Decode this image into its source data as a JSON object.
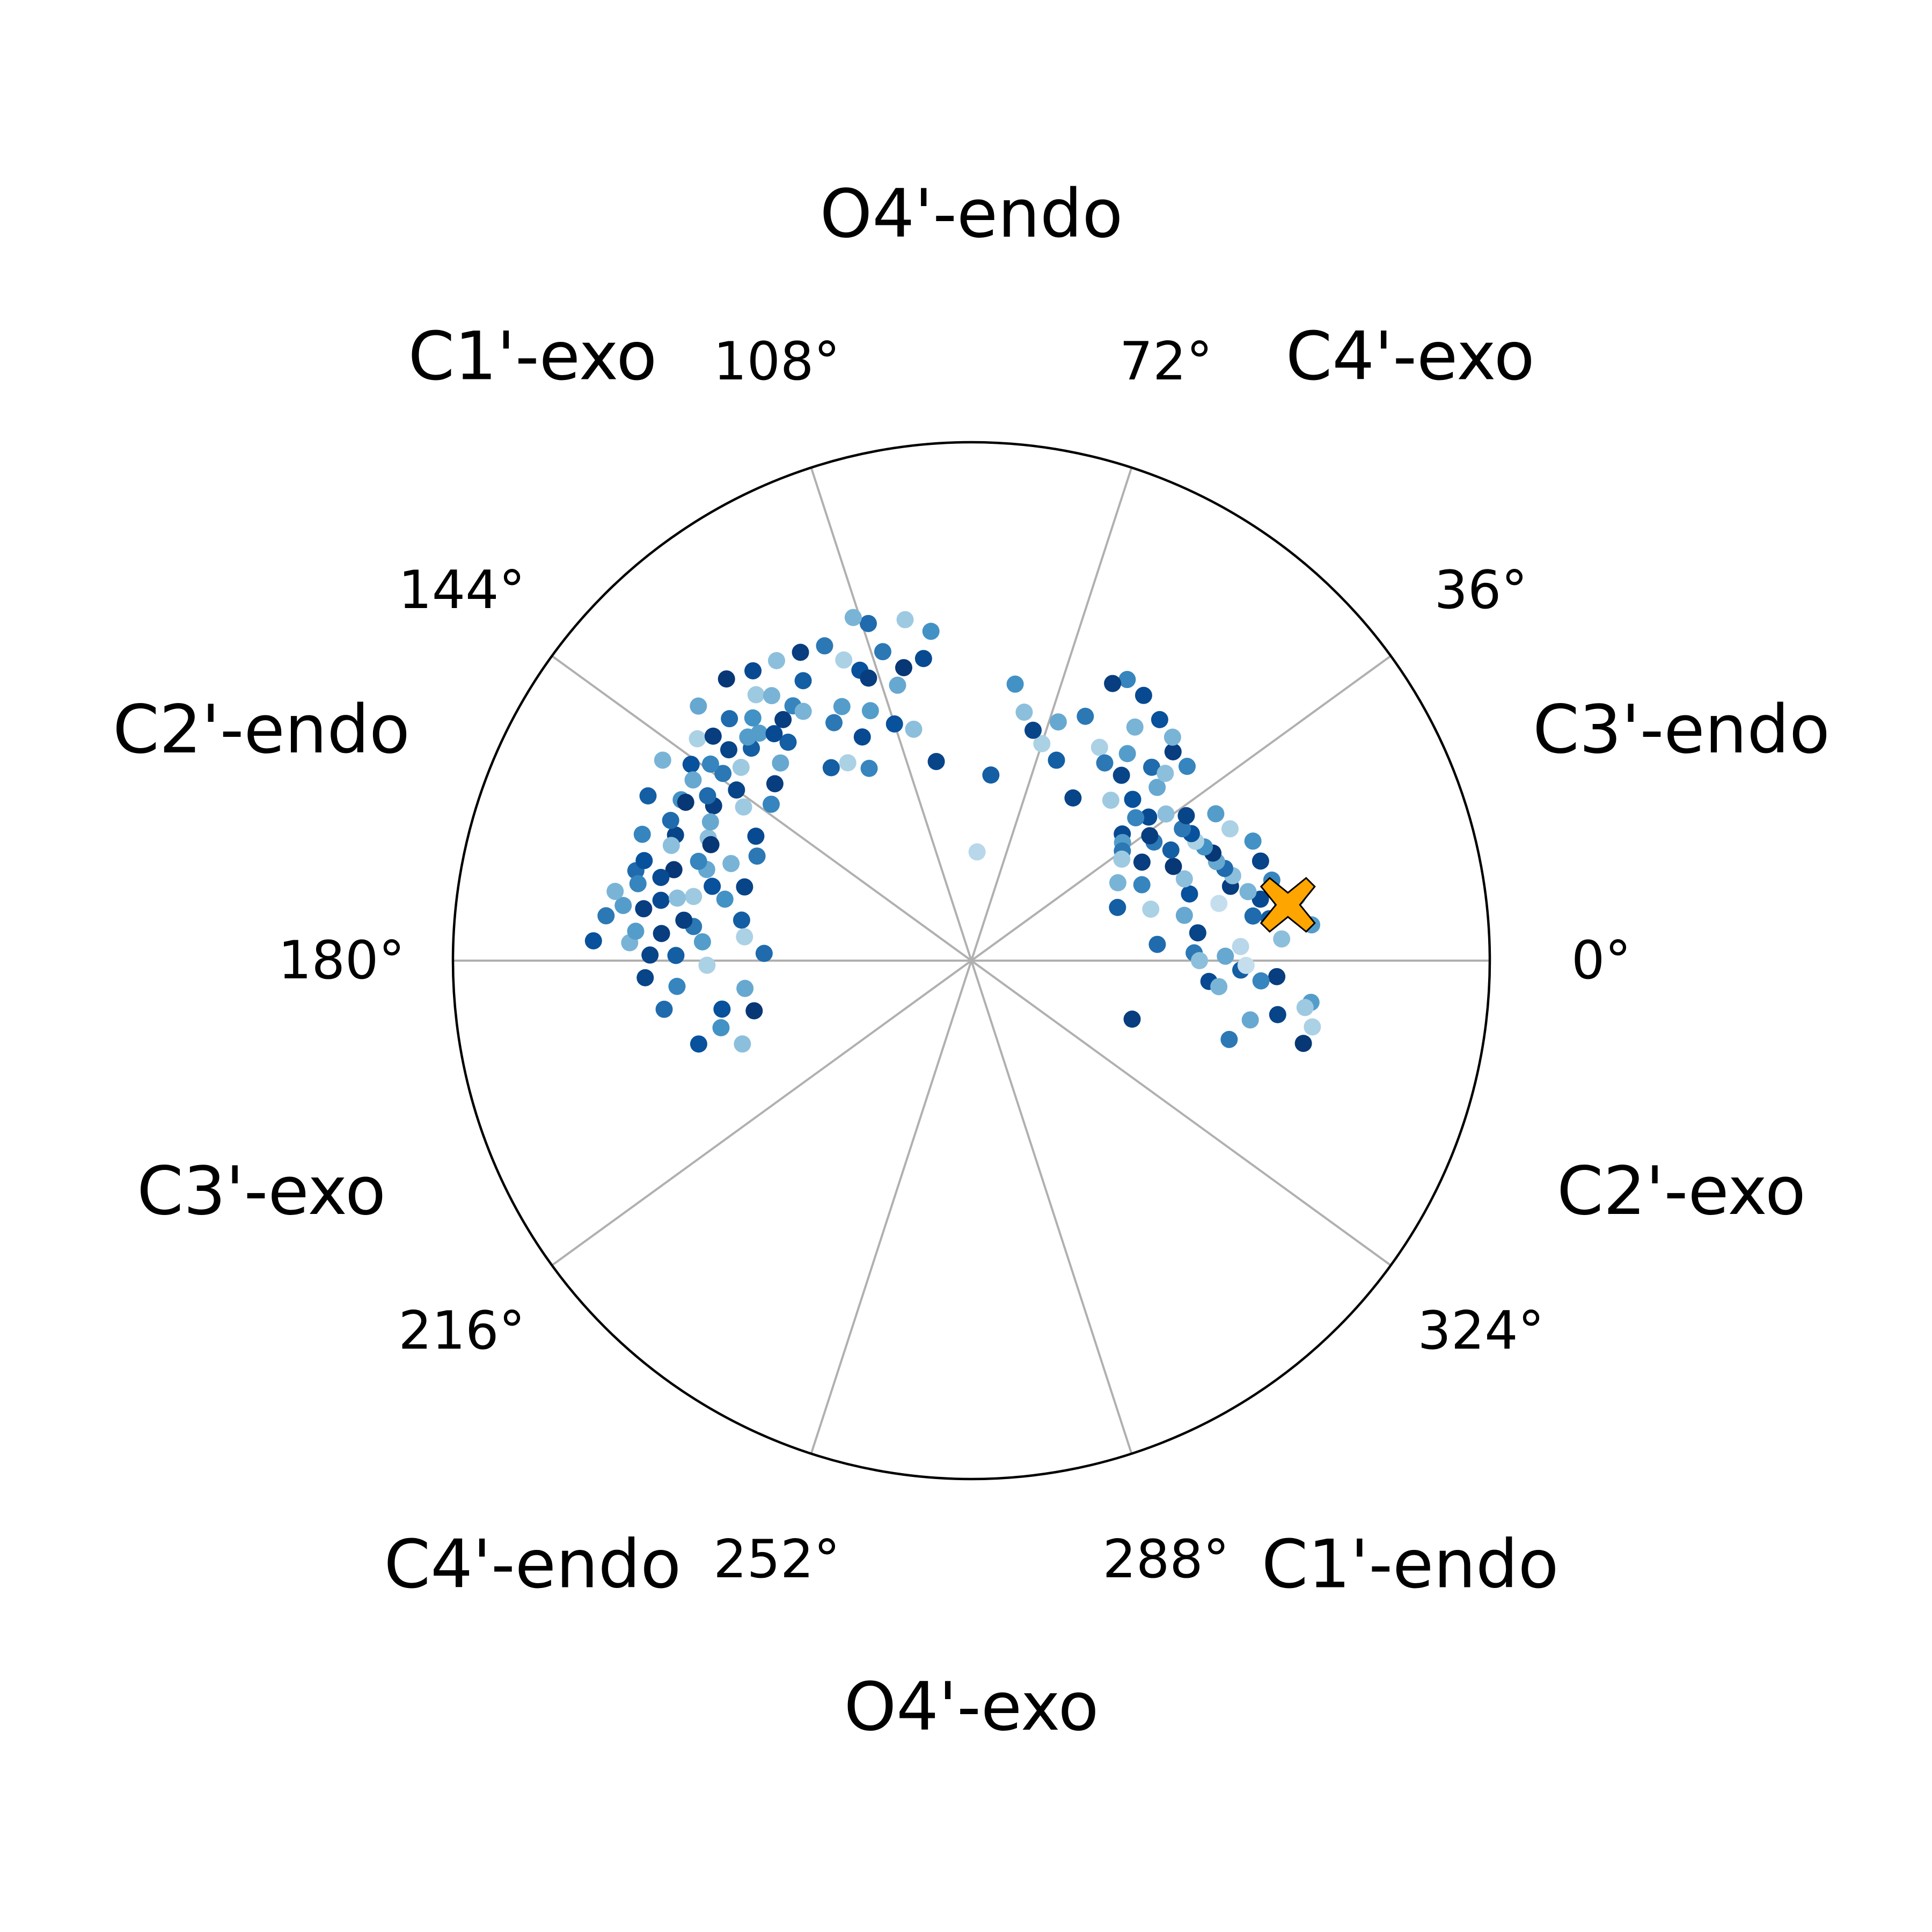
{
  "chart_data": {
    "type": "scatter",
    "coordinate_system": "polar",
    "theta_unit": "degrees",
    "theta_direction": "counterclockwise",
    "theta_zero": "east",
    "r_range": [
      0,
      1
    ],
    "radial_tick_labels": "none",
    "grid": "angular spokes every 36 degrees",
    "legend": "none",
    "colormap": "Blues",
    "theta_tick_labels": [
      "0°",
      "36°",
      "72°",
      "108°",
      "144°",
      "180°",
      "216°",
      "252°",
      "288°",
      "324°"
    ],
    "pucker_labels": [
      {
        "theta": 18,
        "text": "C3'-endo"
      },
      {
        "theta": 54,
        "text": "C4'-exo"
      },
      {
        "theta": 90,
        "text": "O4'-endo"
      },
      {
        "theta": 126,
        "text": "C1'-exo"
      },
      {
        "theta": 162,
        "text": "C2'-endo"
      },
      {
        "theta": 198,
        "text": "C3'-exo"
      },
      {
        "theta": 234,
        "text": "C4'-endo"
      },
      {
        "theta": 270,
        "text": "O4'-exo"
      },
      {
        "theta": 306,
        "text": "C1'-endo"
      },
      {
        "theta": 342,
        "text": "C2'-exo"
      }
    ],
    "highlight": {
      "theta": 10,
      "r": 0.62,
      "marker": "X",
      "color": "#FFA500",
      "edgecolor": "#000000"
    },
    "points": [
      [
        10,
        0.61,
        0.55
      ],
      [
        12,
        0.57,
        0.8
      ],
      [
        14,
        0.55,
        0.35
      ],
      [
        8,
        0.58,
        0.7
      ],
      [
        6,
        0.66,
        0.45
      ],
      [
        16,
        0.52,
        0.9
      ],
      [
        18,
        0.53,
        0.3
      ],
      [
        20,
        0.52,
        0.65
      ],
      [
        22,
        0.51,
        0.4
      ],
      [
        24,
        0.51,
        0.95
      ],
      [
        26,
        0.5,
        0.5
      ],
      [
        28,
        0.49,
        0.2
      ],
      [
        30,
        0.49,
        0.75
      ],
      [
        32,
        0.48,
        0.6
      ],
      [
        34,
        0.5,
        0.85
      ],
      [
        4,
        0.6,
        0.3
      ],
      [
        3,
        0.52,
        0.15
      ],
      [
        2,
        0.43,
        0.6
      ],
      [
        1,
        0.49,
        0.4
      ],
      [
        -2,
        0.52,
        0.7
      ],
      [
        -3,
        0.59,
        0.9
      ],
      [
        -4,
        0.56,
        0.55
      ],
      [
        -5,
        0.46,
        0.8
      ],
      [
        -6,
        0.48,
        0.35
      ],
      [
        -7,
        0.66,
        0.45
      ],
      [
        -8,
        0.65,
        0.25
      ],
      [
        -10,
        0.6,
        0.85
      ],
      [
        -11,
        0.67,
        0.2
      ],
      [
        -12,
        0.55,
        0.4
      ],
      [
        -14,
        0.66,
        0.95
      ],
      [
        -17,
        0.52,
        0.6
      ],
      [
        -20,
        0.33,
        0.9
      ],
      [
        9,
        0.55,
        0.65
      ],
      [
        11,
        0.64,
        0.35
      ],
      [
        13,
        0.49,
        0.1
      ],
      [
        15,
        0.6,
        0.55
      ],
      [
        17,
        0.44,
        0.75
      ],
      [
        19,
        0.59,
        0.85
      ],
      [
        21,
        0.44,
        0.3
      ],
      [
        23,
        0.59,
        0.5
      ],
      [
        25,
        0.43,
        0.95
      ],
      [
        27,
        0.56,
        0.2
      ],
      [
        29,
        0.44,
        0.7
      ],
      [
        31,
        0.55,
        0.45
      ],
      [
        33,
        0.42,
        0.6
      ],
      [
        35,
        0.42,
        0.9
      ],
      [
        37,
        0.47,
        0.3
      ],
      [
        39,
        0.44,
        0.8
      ],
      [
        41,
        0.42,
        0.55
      ],
      [
        43,
        0.49,
        0.4
      ],
      [
        45,
        0.44,
        0.75
      ],
      [
        47,
        0.51,
        0.65
      ],
      [
        49,
        0.41,
        0.25
      ],
      [
        51,
        0.46,
        0.85
      ],
      [
        53,
        0.5,
        0.45
      ],
      [
        55,
        0.55,
        0.35
      ],
      [
        57,
        0.61,
        0.8
      ],
      [
        59,
        0.48,
        0.2
      ],
      [
        61,
        0.62,
        0.55
      ],
      [
        63,
        0.6,
        0.9
      ],
      [
        65,
        0.52,
        0.6
      ],
      [
        67,
        0.42,
        0.7
      ],
      [
        70,
        0.49,
        0.4
      ],
      [
        72,
        0.44,
        0.2
      ],
      [
        75,
        0.46,
        0.85
      ],
      [
        78,
        0.49,
        0.3
      ],
      [
        81,
        0.54,
        0.5
      ],
      [
        84,
        0.36,
        0.7
      ],
      [
        87,
        0.21,
        0.15
      ],
      [
        40,
        0.38,
        0.8
      ],
      [
        38,
        0.37,
        0.45
      ],
      [
        36,
        0.36,
        0.6
      ],
      [
        34,
        0.35,
        0.25
      ],
      [
        30,
        0.38,
        0.9
      ],
      [
        28,
        0.32,
        0.35
      ],
      [
        24,
        0.36,
        0.55
      ],
      [
        20,
        0.3,
        0.7
      ],
      [
        16,
        0.36,
        0.2
      ],
      [
        12,
        0.42,
        0.4
      ],
      [
        7,
        0.44,
        0.85
      ],
      [
        5,
        0.36,
        0.65
      ],
      [
        0,
        0.44,
        0.3
      ],
      [
        -1,
        0.53,
        0.1
      ],
      [
        44,
        0.52,
        0.3
      ],
      [
        46,
        0.56,
        0.9
      ],
      [
        42,
        0.56,
        0.55
      ],
      [
        48,
        0.58,
        0.35
      ],
      [
        52,
        0.59,
        0.75
      ],
      [
        56,
        0.46,
        0.6
      ],
      [
        58,
        0.37,
        0.85
      ],
      [
        97,
        0.64,
        0.5
      ],
      [
        99,
        0.59,
        0.8
      ],
      [
        101,
        0.67,
        0.25
      ],
      [
        103,
        0.58,
        0.95
      ],
      [
        105,
        0.55,
        0.4
      ],
      [
        107,
        0.68,
        0.65
      ],
      [
        109,
        0.7,
        0.35
      ],
      [
        111,
        0.6,
        0.75
      ],
      [
        113,
        0.63,
        0.2
      ],
      [
        115,
        0.67,
        0.6
      ],
      [
        117,
        0.55,
        0.45
      ],
      [
        119,
        0.68,
        0.9
      ],
      [
        121,
        0.63,
        0.7
      ],
      [
        123,
        0.69,
        0.3
      ],
      [
        125,
        0.6,
        0.55
      ],
      [
        127,
        0.7,
        0.8
      ],
      [
        129,
        0.66,
        0.25
      ],
      [
        131,
        0.72,
        0.95
      ],
      [
        133,
        0.6,
        0.45
      ],
      [
        135,
        0.66,
        0.65
      ],
      [
        137,
        0.72,
        0.4
      ],
      [
        139,
        0.62,
        0.85
      ],
      [
        141,
        0.68,
        0.2
      ],
      [
        143,
        0.6,
        0.6
      ],
      [
        145,
        0.66,
        0.75
      ],
      [
        147,
        0.71,
        0.35
      ],
      [
        149,
        0.58,
        0.9
      ],
      [
        151,
        0.64,
        0.5
      ],
      [
        153,
        0.7,
        0.7
      ],
      [
        155,
        0.56,
        0.3
      ],
      [
        157,
        0.62,
        0.85
      ],
      [
        159,
        0.68,
        0.55
      ],
      [
        161,
        0.54,
        0.4
      ],
      [
        163,
        0.6,
        0.95
      ],
      [
        165,
        0.67,
        0.65
      ],
      [
        167,
        0.55,
        0.25
      ],
      [
        169,
        0.61,
        0.8
      ],
      [
        171,
        0.68,
        0.45
      ],
      [
        173,
        0.54,
        0.6
      ],
      [
        175,
        0.6,
        0.9
      ],
      [
        177,
        0.66,
        0.35
      ],
      [
        179,
        0.57,
        0.7
      ],
      [
        181,
        0.51,
        0.2
      ],
      [
        183,
        0.63,
        0.85
      ],
      [
        185,
        0.57,
        0.55
      ],
      [
        187,
        0.44,
        0.4
      ],
      [
        189,
        0.6,
        0.65
      ],
      [
        191,
        0.49,
        0.75
      ],
      [
        193,
        0.43,
        0.95
      ],
      [
        195,
        0.5,
        0.5
      ],
      [
        197,
        0.55,
        0.75
      ],
      [
        200,
        0.47,
        0.3
      ],
      [
        130,
        0.55,
        0.7
      ],
      [
        134,
        0.53,
        0.4
      ],
      [
        138,
        0.51,
        0.9
      ],
      [
        142,
        0.49,
        0.55
      ],
      [
        146,
        0.53,
        0.25
      ],
      [
        150,
        0.48,
        0.8
      ],
      [
        154,
        0.46,
        0.6
      ],
      [
        158,
        0.5,
        0.35
      ],
      [
        162,
        0.46,
        0.85
      ],
      [
        166,
        0.49,
        0.5
      ],
      [
        170,
        0.45,
        0.7
      ],
      [
        174,
        0.44,
        0.2
      ],
      [
        178,
        0.4,
        0.65
      ],
      [
        176,
        0.52,
        0.45
      ],
      [
        172,
        0.56,
        0.9
      ],
      [
        168,
        0.58,
        0.3
      ],
      [
        164,
        0.52,
        0.75
      ],
      [
        160,
        0.56,
        0.55
      ],
      [
        156,
        0.55,
        0.95
      ],
      [
        152,
        0.57,
        0.4
      ],
      [
        148,
        0.6,
        0.65
      ],
      [
        144,
        0.56,
        0.85
      ],
      [
        140,
        0.58,
        0.25
      ],
      [
        136,
        0.59,
        0.7
      ],
      [
        132,
        0.63,
        0.5
      ],
      [
        128,
        0.59,
        0.9
      ],
      [
        124,
        0.58,
        0.35
      ],
      [
        120,
        0.53,
        0.6
      ],
      [
        116,
        0.48,
        0.8
      ],
      [
        112,
        0.52,
        0.45
      ],
      [
        108,
        0.48,
        0.75
      ],
      [
        104,
        0.46,
        0.3
      ],
      [
        100,
        0.39,
        0.85
      ],
      [
        118,
        0.42,
        0.55
      ],
      [
        122,
        0.45,
        0.2
      ],
      [
        126,
        0.46,
        0.7
      ],
      [
        110,
        0.58,
        0.9
      ],
      [
        106,
        0.62,
        0.6
      ],
      [
        165,
        0.62,
        0.8
      ],
      [
        167,
        0.66,
        0.55
      ],
      [
        169,
        0.7,
        0.35
      ],
      [
        171,
        0.64,
        0.9
      ],
      [
        173,
        0.71,
        0.6
      ],
      [
        175,
        0.65,
        0.45
      ],
      [
        177,
        0.73,
        0.75
      ],
      [
        179,
        0.62,
        0.85
      ],
      [
        147,
        0.64,
        0.4
      ],
      [
        151,
        0.63,
        0.95
      ],
      [
        155,
        0.64,
        0.65
      ],
      [
        159,
        0.62,
        0.3
      ],
      [
        163,
        0.66,
        0.75
      ],
      [
        143,
        0.63,
        0.55
      ],
      [
        139,
        0.66,
        0.9
      ],
      [
        135,
        0.61,
        0.45
      ],
      [
        131,
        0.58,
        0.8
      ],
      [
        127,
        0.64,
        0.35
      ]
    ]
  }
}
